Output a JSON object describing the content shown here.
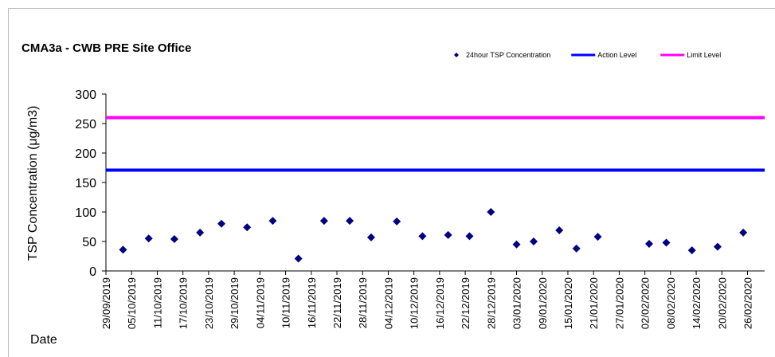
{
  "chart_data": {
    "type": "scatter",
    "title": "CMA3a - CWB PRE Site Office",
    "ylabel": "TSP Concentration (μg/m3)",
    "xlabel": "Date",
    "legend": "top-right",
    "ylim": [
      0,
      300
    ],
    "yticks": [
      0,
      50,
      100,
      150,
      200,
      250,
      300
    ],
    "xlim": [
      "2019-09-29",
      "2020-03-01"
    ],
    "xticks": [
      {
        "value": "2019-09-29",
        "label": "29/09/2019"
      },
      {
        "value": "2019-10-05",
        "label": "05/10/2019"
      },
      {
        "value": "2019-10-11",
        "label": "11/10/2019"
      },
      {
        "value": "2019-10-17",
        "label": "17/10/2019"
      },
      {
        "value": "2019-10-23",
        "label": "23/10/2019"
      },
      {
        "value": "2019-10-29",
        "label": "29/10/2019"
      },
      {
        "value": "2019-11-04",
        "label": "04/11/2019"
      },
      {
        "value": "2019-11-10",
        "label": "10/11/2019"
      },
      {
        "value": "2019-11-16",
        "label": "16/11/2019"
      },
      {
        "value": "2019-11-22",
        "label": "22/11/2019"
      },
      {
        "value": "2019-11-28",
        "label": "28/11/2019"
      },
      {
        "value": "2019-12-04",
        "label": "04/12/2019"
      },
      {
        "value": "2019-12-10",
        "label": "10/12/2019"
      },
      {
        "value": "2019-12-16",
        "label": "16/12/2019"
      },
      {
        "value": "2019-12-22",
        "label": "22/12/2019"
      },
      {
        "value": "2019-12-28",
        "label": "28/12/2019"
      },
      {
        "value": "2020-01-03",
        "label": "03/01/2020"
      },
      {
        "value": "2020-01-09",
        "label": "09/01/2020"
      },
      {
        "value": "2020-01-15",
        "label": "15/01/2020"
      },
      {
        "value": "2020-01-21",
        "label": "21/01/2020"
      },
      {
        "value": "2020-01-27",
        "label": "27/01/2020"
      },
      {
        "value": "2020-02-02",
        "label": "02/02/2020"
      },
      {
        "value": "2020-02-08",
        "label": "08/02/2020"
      },
      {
        "value": "2020-02-14",
        "label": "14/02/2020"
      },
      {
        "value": "2020-02-20",
        "label": "20/02/2020"
      },
      {
        "value": "2020-02-26",
        "label": "26/02/2020"
      }
    ],
    "series": [
      {
        "name": "24hour TSP Concentration",
        "color": "#000080",
        "marker": "diamond",
        "x": [
          "2019-10-03",
          "2019-10-09",
          "2019-10-15",
          "2019-10-21",
          "2019-10-26",
          "2019-11-01",
          "2019-11-07",
          "2019-11-13",
          "2019-11-19",
          "2019-11-25",
          "2019-11-30",
          "2019-12-06",
          "2019-12-12",
          "2019-12-18",
          "2019-12-23",
          "2019-12-28",
          "2020-01-03",
          "2020-01-07",
          "2020-01-13",
          "2020-01-17",
          "2020-01-22",
          "2020-02-03",
          "2020-02-07",
          "2020-02-13",
          "2020-02-19",
          "2020-02-25"
        ],
        "values": [
          36,
          55,
          54,
          65,
          80,
          74,
          85,
          21,
          85,
          85,
          57,
          84,
          59,
          61,
          59,
          100,
          45,
          50,
          69,
          38,
          58,
          46,
          48,
          35,
          41,
          65
        ]
      },
      {
        "name": "Action Level",
        "color": "#0000ff",
        "level": 171
      },
      {
        "name": "Limit Level",
        "color": "#ff00ff",
        "level": 260
      }
    ]
  }
}
